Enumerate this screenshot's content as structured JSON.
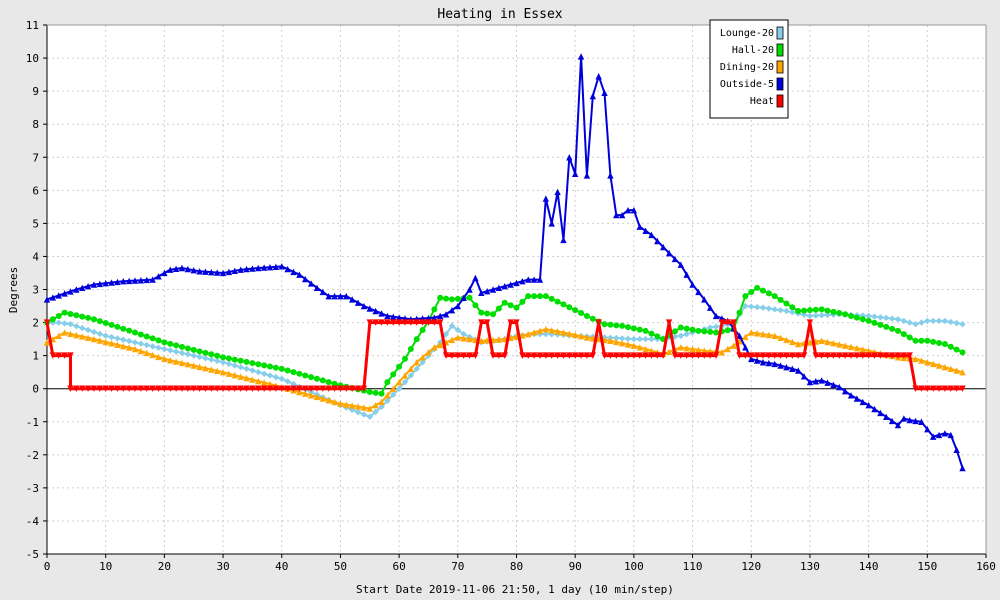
{
  "chart_data": {
    "type": "line",
    "title": "Heating in Essex",
    "xlabel": "Start Date 2019-11-06 21:50, 1 day (10 min/step)",
    "ylabel": "Degrees",
    "xlim": [
      0,
      160
    ],
    "ylim": [
      -5,
      11
    ],
    "xticks": [
      0,
      10,
      20,
      30,
      40,
      50,
      60,
      70,
      80,
      90,
      100,
      110,
      120,
      130,
      140,
      150,
      160
    ],
    "yticks": [
      -5,
      -4,
      -3,
      -2,
      -1,
      0,
      1,
      2,
      3,
      4,
      5,
      6,
      7,
      8,
      9,
      10,
      11
    ],
    "grid": true,
    "legend_position": "top-right",
    "series": [
      {
        "name": "Lounge-20",
        "color": "#87ceeb",
        "marker": "diamond",
        "points": [
          [
            0,
            2.0
          ],
          [
            2,
            2.0
          ],
          [
            4,
            1.95
          ],
          [
            10,
            1.6
          ],
          [
            20,
            1.2
          ],
          [
            30,
            0.8
          ],
          [
            40,
            0.3
          ],
          [
            45,
            -0.1
          ],
          [
            50,
            -0.5
          ],
          [
            55,
            -0.85
          ],
          [
            57,
            -0.55
          ],
          [
            60,
            0.0
          ],
          [
            62,
            0.4
          ],
          [
            65,
            1.0
          ],
          [
            67,
            1.4
          ],
          [
            69,
            1.9
          ],
          [
            71,
            1.65
          ],
          [
            74,
            1.4
          ],
          [
            78,
            1.5
          ],
          [
            80,
            1.6
          ],
          [
            83,
            1.65
          ],
          [
            86,
            1.65
          ],
          [
            90,
            1.6
          ],
          [
            95,
            1.55
          ],
          [
            100,
            1.5
          ],
          [
            104,
            1.5
          ],
          [
            108,
            1.6
          ],
          [
            111,
            1.75
          ],
          [
            113,
            1.85
          ],
          [
            115,
            1.9
          ],
          [
            117,
            2.0
          ],
          [
            119,
            2.5
          ],
          [
            122,
            2.45
          ],
          [
            126,
            2.35
          ],
          [
            130,
            2.2
          ],
          [
            135,
            2.25
          ],
          [
            140,
            2.2
          ],
          [
            145,
            2.1
          ],
          [
            148,
            1.95
          ],
          [
            150,
            2.05
          ],
          [
            153,
            2.05
          ],
          [
            156,
            1.95
          ]
        ]
      },
      {
        "name": "Hall-20",
        "color": "#00dd00",
        "marker": "circle",
        "points": [
          [
            0,
            2.0
          ],
          [
            3,
            2.3
          ],
          [
            8,
            2.1
          ],
          [
            15,
            1.7
          ],
          [
            20,
            1.4
          ],
          [
            30,
            0.95
          ],
          [
            40,
            0.6
          ],
          [
            45,
            0.35
          ],
          [
            50,
            0.1
          ],
          [
            55,
            -0.1
          ],
          [
            57,
            -0.15
          ],
          [
            58,
            0.2
          ],
          [
            61,
            0.9
          ],
          [
            63,
            1.5
          ],
          [
            65,
            2.05
          ],
          [
            67,
            2.75
          ],
          [
            69,
            2.7
          ],
          [
            72,
            2.75
          ],
          [
            74,
            2.3
          ],
          [
            76,
            2.25
          ],
          [
            78,
            2.6
          ],
          [
            80,
            2.45
          ],
          [
            82,
            2.8
          ],
          [
            85,
            2.8
          ],
          [
            88,
            2.55
          ],
          [
            92,
            2.2
          ],
          [
            95,
            1.95
          ],
          [
            98,
            1.9
          ],
          [
            102,
            1.75
          ],
          [
            105,
            1.5
          ],
          [
            108,
            1.85
          ],
          [
            111,
            1.75
          ],
          [
            114,
            1.7
          ],
          [
            117,
            1.8
          ],
          [
            119,
            2.8
          ],
          [
            121,
            3.05
          ],
          [
            124,
            2.8
          ],
          [
            128,
            2.35
          ],
          [
            132,
            2.4
          ],
          [
            136,
            2.25
          ],
          [
            140,
            2.05
          ],
          [
            145,
            1.75
          ],
          [
            148,
            1.45
          ],
          [
            150,
            1.45
          ],
          [
            153,
            1.35
          ],
          [
            156,
            1.1
          ]
        ]
      },
      {
        "name": "Dining-20",
        "color": "#ffa500",
        "marker": "triangle",
        "points": [
          [
            0,
            1.4
          ],
          [
            3,
            1.7
          ],
          [
            8,
            1.5
          ],
          [
            15,
            1.2
          ],
          [
            20,
            0.9
          ],
          [
            30,
            0.5
          ],
          [
            40,
            0.05
          ],
          [
            45,
            -0.2
          ],
          [
            50,
            -0.45
          ],
          [
            55,
            -0.6
          ],
          [
            57,
            -0.4
          ],
          [
            60,
            0.2
          ],
          [
            63,
            0.8
          ],
          [
            66,
            1.25
          ],
          [
            70,
            1.55
          ],
          [
            74,
            1.45
          ],
          [
            78,
            1.5
          ],
          [
            82,
            1.65
          ],
          [
            85,
            1.8
          ],
          [
            88,
            1.7
          ],
          [
            92,
            1.55
          ],
          [
            96,
            1.45
          ],
          [
            100,
            1.3
          ],
          [
            105,
            1.05
          ],
          [
            108,
            1.25
          ],
          [
            112,
            1.15
          ],
          [
            115,
            1.1
          ],
          [
            117,
            1.3
          ],
          [
            120,
            1.7
          ],
          [
            124,
            1.6
          ],
          [
            128,
            1.35
          ],
          [
            132,
            1.45
          ],
          [
            136,
            1.3
          ],
          [
            140,
            1.15
          ],
          [
            145,
            0.95
          ],
          [
            148,
            0.9
          ],
          [
            152,
            0.7
          ],
          [
            156,
            0.5
          ]
        ]
      },
      {
        "name": "Outside-5",
        "color": "#0000dd",
        "marker": "triangle",
        "points": [
          [
            0,
            2.7
          ],
          [
            5,
            3.0
          ],
          [
            8,
            3.15
          ],
          [
            13,
            3.25
          ],
          [
            18,
            3.3
          ],
          [
            21,
            3.6
          ],
          [
            23,
            3.65
          ],
          [
            26,
            3.55
          ],
          [
            30,
            3.5
          ],
          [
            33,
            3.6
          ],
          [
            36,
            3.65
          ],
          [
            40,
            3.7
          ],
          [
            43,
            3.45
          ],
          [
            46,
            3.05
          ],
          [
            48,
            2.8
          ],
          [
            51,
            2.8
          ],
          [
            54,
            2.5
          ],
          [
            58,
            2.2
          ],
          [
            62,
            2.1
          ],
          [
            66,
            2.15
          ],
          [
            68,
            2.25
          ],
          [
            70,
            2.5
          ],
          [
            72,
            3.0
          ],
          [
            73,
            3.35
          ],
          [
            74,
            2.9
          ],
          [
            76,
            3.0
          ],
          [
            80,
            3.2
          ],
          [
            82,
            3.3
          ],
          [
            84,
            3.3
          ],
          [
            85,
            5.75
          ],
          [
            86,
            5.0
          ],
          [
            87,
            5.95
          ],
          [
            88,
            4.5
          ],
          [
            89,
            7.0
          ],
          [
            90,
            6.5
          ],
          [
            91,
            10.05
          ],
          [
            92,
            6.45
          ],
          [
            93,
            8.85
          ],
          [
            94,
            9.45
          ],
          [
            95,
            8.95
          ],
          [
            96,
            6.45
          ],
          [
            97,
            5.25
          ],
          [
            98,
            5.25
          ],
          [
            99,
            5.4
          ],
          [
            100,
            5.4
          ],
          [
            101,
            4.9
          ],
          [
            103,
            4.65
          ],
          [
            106,
            4.1
          ],
          [
            108,
            3.75
          ],
          [
            110,
            3.15
          ],
          [
            112,
            2.7
          ],
          [
            114,
            2.2
          ],
          [
            116,
            2.05
          ],
          [
            118,
            1.6
          ],
          [
            120,
            0.9
          ],
          [
            122,
            0.8
          ],
          [
            124,
            0.75
          ],
          [
            126,
            0.65
          ],
          [
            128,
            0.55
          ],
          [
            130,
            0.2
          ],
          [
            132,
            0.25
          ],
          [
            135,
            0.05
          ],
          [
            137,
            -0.2
          ],
          [
            140,
            -0.5
          ],
          [
            143,
            -0.85
          ],
          [
            145,
            -1.1
          ],
          [
            146,
            -0.9
          ],
          [
            147,
            -0.95
          ],
          [
            149,
            -1.0
          ],
          [
            151,
            -1.45
          ],
          [
            153,
            -1.35
          ],
          [
            154,
            -1.4
          ],
          [
            155,
            -1.85
          ],
          [
            156,
            -2.4
          ]
        ]
      },
      {
        "name": "Heat",
        "color": "#ff0000",
        "marker": "triangle-down",
        "points": [
          [
            0,
            2
          ],
          [
            1,
            1
          ],
          [
            4,
            1
          ],
          [
            4,
            0
          ],
          [
            54,
            0
          ],
          [
            55,
            2
          ],
          [
            67,
            2
          ],
          [
            68,
            1
          ],
          [
            73,
            1
          ],
          [
            74,
            2
          ],
          [
            75,
            2
          ],
          [
            76,
            1
          ],
          [
            78,
            1
          ],
          [
            79,
            2
          ],
          [
            80,
            2
          ],
          [
            81,
            1
          ],
          [
            93,
            1
          ],
          [
            94,
            2
          ],
          [
            95,
            1
          ],
          [
            105,
            1
          ],
          [
            106,
            2
          ],
          [
            107,
            1
          ],
          [
            114,
            1
          ],
          [
            115,
            2
          ],
          [
            117,
            2
          ],
          [
            118,
            1
          ],
          [
            129,
            1
          ],
          [
            130,
            2
          ],
          [
            131,
            1
          ],
          [
            147,
            1
          ],
          [
            148,
            0
          ],
          [
            156,
            0
          ]
        ]
      }
    ]
  }
}
